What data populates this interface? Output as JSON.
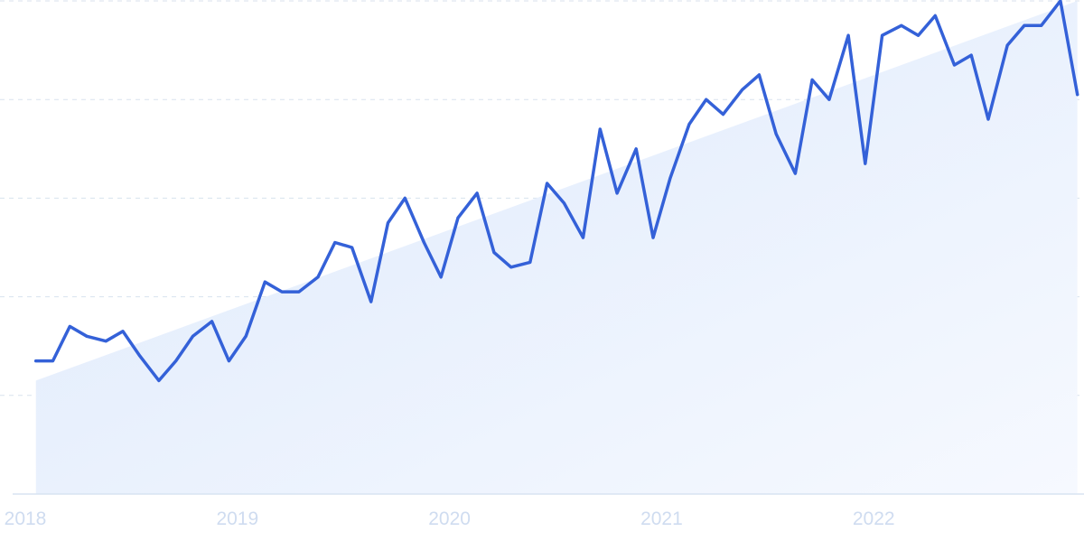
{
  "chart_data": {
    "type": "line",
    "title": "",
    "xlabel": "",
    "ylabel": "",
    "x_tick_labels": [
      "2018",
      "2019",
      "2020",
      "2021",
      "2022"
    ],
    "x_tick_values": [
      2018,
      2019,
      2020,
      2021,
      2022
    ],
    "xlim": [
      2018,
      2022.97
    ],
    "ylim": [
      0,
      100
    ],
    "y_gridlines": [
      20,
      40,
      60,
      80,
      100
    ],
    "y_tick_labels_visible": false,
    "grid": "horizontal-dashed",
    "legend": "none",
    "series": [
      {
        "x": [
          2018.05,
          2018.13,
          2018.21,
          2018.29,
          2018.38,
          2018.46,
          2018.54,
          2018.63,
          2018.71,
          2018.79,
          2018.88,
          2018.96,
          2019.04,
          2019.13,
          2019.21,
          2019.29,
          2019.38,
          2019.46,
          2019.54,
          2019.63,
          2019.71,
          2019.79,
          2019.88,
          2019.96,
          2020.04,
          2020.13,
          2020.21,
          2020.29,
          2020.38,
          2020.46,
          2020.54,
          2020.63,
          2020.71,
          2020.79,
          2020.88,
          2020.96,
          2021.04,
          2021.13,
          2021.21,
          2021.29,
          2021.38,
          2021.46,
          2021.54,
          2021.63,
          2021.71,
          2021.79,
          2021.88,
          2021.96,
          2022.04,
          2022.13,
          2022.21,
          2022.29,
          2022.38,
          2022.46,
          2022.54,
          2022.63,
          2022.71,
          2022.79,
          2022.88,
          2022.96
        ],
        "values": [
          27,
          27,
          34,
          32,
          31,
          33,
          28,
          23,
          27,
          32,
          35,
          27,
          32,
          43,
          41,
          41,
          44,
          51,
          50,
          39,
          55,
          60,
          51,
          44,
          56,
          61,
          49,
          46,
          47,
          63,
          59,
          52,
          74,
          61,
          70,
          52,
          64,
          75,
          80,
          77,
          82,
          85,
          73,
          65,
          84,
          80,
          93,
          67,
          93,
          95,
          93,
          97,
          87,
          89,
          76,
          91,
          95,
          95,
          100,
          81
        ]
      }
    ],
    "trend": {
      "x": [
        2018.05,
        2022.96
      ],
      "values": [
        23,
        100
      ]
    }
  },
  "colors": {
    "line": "#3461d8",
    "fill_top": "#dde9fb",
    "fill_bottom": "#f6f9ff",
    "grid": "#d8e2ee",
    "baseline": "#d8e4f2",
    "tick_label": "#cfdcf0"
  }
}
